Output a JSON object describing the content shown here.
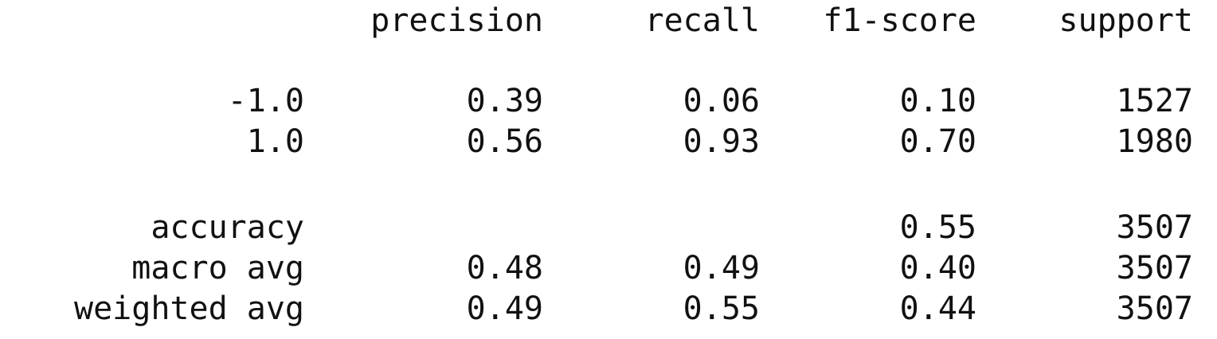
{
  "header": {
    "precision": "precision",
    "recall": "recall",
    "f1_score": "f1-score",
    "support": "support"
  },
  "rows": [
    {
      "label": "-1.0",
      "precision": "0.39",
      "recall": "0.06",
      "f1_score": "0.10",
      "support": "1527"
    },
    {
      "label": "1.0",
      "precision": "0.56",
      "recall": "0.93",
      "f1_score": "0.70",
      "support": "1980"
    },
    {
      "label": "accuracy",
      "precision": "",
      "recall": "",
      "f1_score": "0.55",
      "support": "3507"
    },
    {
      "label": "macro avg",
      "precision": "0.48",
      "recall": "0.49",
      "f1_score": "0.40",
      "support": "3507"
    },
    {
      "label": "weighted avg",
      "precision": "0.49",
      "recall": "0.55",
      "f1_score": "0.44",
      "support": "3507"
    }
  ]
}
